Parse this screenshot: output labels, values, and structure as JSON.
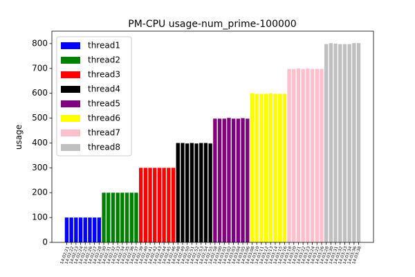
{
  "chart_data": {
    "type": "bar",
    "title": "PM-CPU usage-num_prime-100000",
    "y_label": "usage",
    "ylim": [
      0,
      850
    ],
    "yticks": [
      0,
      100,
      200,
      300,
      400,
      500,
      600,
      700,
      800
    ],
    "legend": "upper left",
    "series": [
      {
        "name": "thread1",
        "color": "#0000ff",
        "categories": [
          "14:02:21",
          "14:02:22",
          "14:02:23",
          "14:02:24",
          "14:02:25",
          "14:02:26",
          "14:02:27",
          "14:02:28"
        ],
        "values": [
          100,
          100,
          100,
          100,
          100,
          100,
          100,
          100
        ]
      },
      {
        "name": "thread2",
        "color": "#008000",
        "categories": [
          "14:02:30",
          "14:02:31",
          "14:02:32",
          "14:02:33",
          "14:02:34",
          "14:02:35",
          "14:02:36",
          "14:02:37"
        ],
        "values": [
          200,
          200,
          200,
          200,
          200,
          200,
          200,
          200
        ]
      },
      {
        "name": "thread3",
        "color": "#ff0000",
        "categories": [
          "14:02:39",
          "14:02:40",
          "14:02:41",
          "14:02:42",
          "14:02:43",
          "14:02:44",
          "14:02:45",
          "14:02:46"
        ],
        "values": [
          300,
          300,
          300,
          300,
          300,
          300,
          300,
          300
        ]
      },
      {
        "name": "thread4",
        "color": "#000000",
        "categories": [
          "14:02:48",
          "14:02:49",
          "14:02:50",
          "14:02:51",
          "14:02:52",
          "14:02:53",
          "14:02:54",
          "14:02:55"
        ],
        "values": [
          400,
          400,
          398,
          400,
          398,
          400,
          400,
          398
        ]
      },
      {
        "name": "thread5",
        "color": "#800080",
        "categories": [
          "14:02:58",
          "14:03:00",
          "14:03:01",
          "14:03:02",
          "14:03:03",
          "14:03:04",
          "14:03:05",
          "14:03:06"
        ],
        "values": [
          498,
          498,
          498,
          501,
          498,
          498,
          500,
          498
        ]
      },
      {
        "name": "thread6",
        "color": "#ffff00",
        "categories": [
          "14:03:08",
          "14:03:10",
          "14:03:11",
          "14:03:12",
          "14:03:13",
          "14:03:14",
          "14:03:15",
          "14:03:16"
        ],
        "values": [
          600,
          598,
          598,
          598,
          600,
          598,
          598,
          598
        ]
      },
      {
        "name": "thread7",
        "color": "#ffc0cb",
        "categories": [
          "14:03:18",
          "14:03:20",
          "14:03:21",
          "14:03:22",
          "14:03:23",
          "14:03:24",
          "14:03:25",
          "14:03:26"
        ],
        "values": [
          698,
          698,
          700,
          698,
          700,
          698,
          698,
          698
        ]
      },
      {
        "name": "thread8",
        "color": "#c0c0c0",
        "categories": [
          "14:03:28",
          "14:03:30",
          "14:03:31",
          "14:03:32",
          "14:03:33",
          "14:03:34",
          "14:03:36",
          "14:03:38"
        ],
        "values": [
          798,
          802,
          800,
          798,
          798,
          798,
          802,
          802
        ]
      }
    ]
  }
}
